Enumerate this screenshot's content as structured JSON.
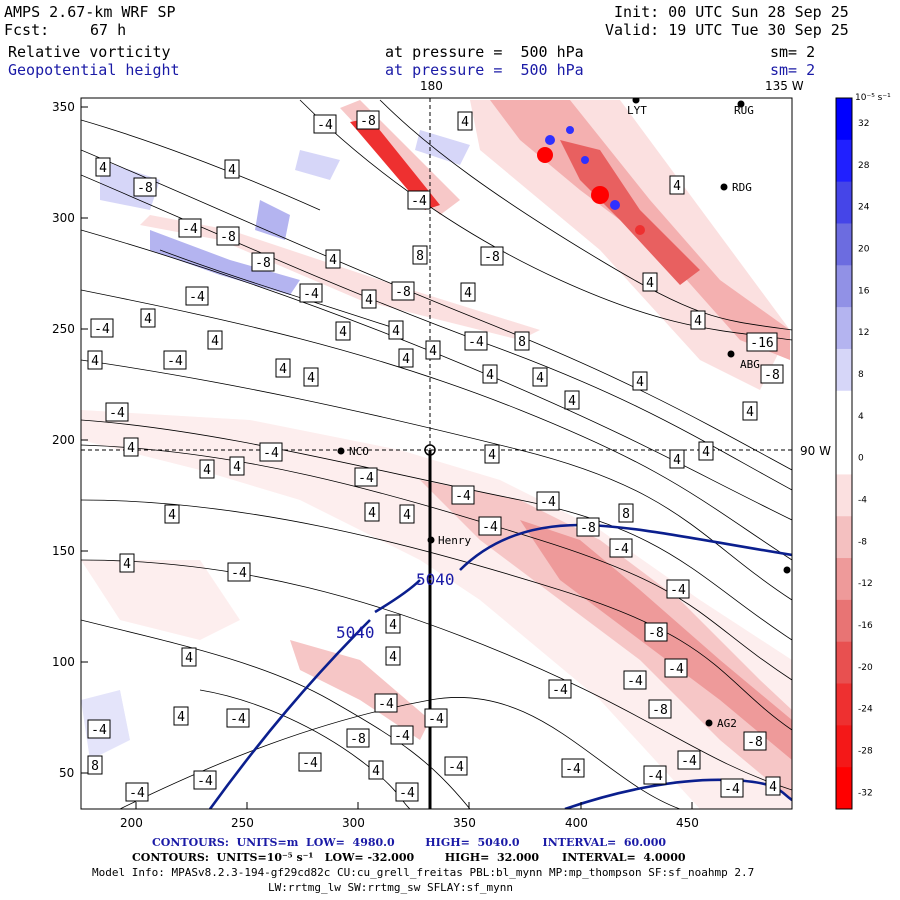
{
  "header": {
    "model": "AMPS 2.67-km WRF SP",
    "fcst_label": "Fcst:",
    "fcst_value": "67 h",
    "init": "Init: 00 UTC Sun 28 Sep 25",
    "valid": "Valid: 19 UTC Tue 30 Sep 25",
    "field1_name": "Relative vorticity",
    "field1_level": "at pressure =  500 hPa",
    "field1_sm": "sm= 2",
    "field2_name": "Geopotential height",
    "field2_level": "at pressure =  500 hPa",
    "field2_sm": "sm= 2"
  },
  "map": {
    "top_longitude_labels": [
      "180",
      "135 W"
    ],
    "right_longitude_label": "90 W",
    "x_ticks": [
      "200",
      "250",
      "300",
      "350",
      "400",
      "450"
    ],
    "y_ticks": [
      "350",
      "300",
      "250",
      "200",
      "150",
      "100",
      "50"
    ],
    "stations": [
      "LYT",
      "RUG",
      "RDG",
      "ABG",
      "NCO",
      "Henry",
      "AG2"
    ],
    "height_contour_labels": [
      "5040",
      "5040"
    ],
    "vorticity_contour_labels": [
      "-4",
      "-8",
      "-16",
      "4",
      "8"
    ]
  },
  "colorbar": {
    "unit": "10⁻⁵ s⁻¹",
    "ticks": [
      "32",
      "28",
      "24",
      "20",
      "16",
      "12",
      "8",
      "4",
      "0",
      "-4",
      "-8",
      "-12",
      "-16",
      "-20",
      "-24",
      "-28",
      "-32"
    ],
    "colors": [
      "#0000ff",
      "#2020ff",
      "#4545e8",
      "#6c6ce0",
      "#9191e6",
      "#b4b4f0",
      "#d6d6f8",
      "#ffffff",
      "#ffffff",
      "#fbe0e0",
      "#f4c0c0",
      "#ee9a9a",
      "#e87474",
      "#e85050",
      "#ee3030",
      "#f41818",
      "#ff0000"
    ]
  },
  "footer": {
    "line1": "CONTOURS:  UNITS=m  LOW=  4980.0        HIGH=  5040.0      INTERVAL=  60.000",
    "line2": "CONTOURS:  UNITS=10⁻⁵ s⁻¹   LOW= -32.000        HIGH=  32.000      INTERVAL=  4.0000",
    "line3": "Model Info: MPASv8.2.3-194-gf29cd82c CU:cu_grell_freitas PBL:bl_mynn MP:mp_thompson SF:sf_noahmp 2.7",
    "line4": "LW:rrtmg_lw SW:rrtmg_sw SFLAY:sf_mynn"
  }
}
